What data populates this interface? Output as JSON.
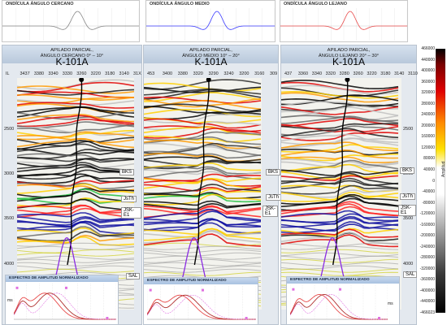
{
  "wavelets": [
    {
      "title": "ONDÍCULA ÁNGULO CERCANO",
      "color": "#888888"
    },
    {
      "title": "ONDÍCULA ÁNGULO MEDIO",
      "color": "#3a3aff"
    },
    {
      "title": "ONDÍCULA ÁNGULO LEJANO",
      "color": "#e84a4a"
    }
  ],
  "panels": [
    {
      "title_line1": "APILADO PARCIAL,",
      "title_line2": "ÁNGULO CERCANO 0° – 10°",
      "well": "K-101A",
      "trace_axis": [
        "IL",
        "3437",
        "3380",
        "3340",
        "3330",
        "3260",
        "3220",
        "3180",
        "3140",
        "31X"
      ],
      "horizons": [
        "BKS",
        "JsTh",
        "JSK-E1",
        "SAL"
      ],
      "spectrum_title": "ESPECTRO DE AMPLITUD NORMALIZADO",
      "spectrum_unit": "ms"
    },
    {
      "title_line1": "APILADO PARCIAL,",
      "title_line2": "ÁNGULO MEDIO 10° – 20°",
      "well": "K-101A",
      "trace_axis": [
        "453",
        "3400",
        "3380",
        "3320",
        "3290",
        "3240",
        "3200",
        "3160",
        "309"
      ],
      "horizons": [
        "BKS",
        "JsTh",
        "JSK-E1"
      ],
      "spectrum_title": "ESPECTRO DE AMPLITUD NORMALIZADO",
      "spectrum_unit": ""
    },
    {
      "title_line1": "APILADO PARCIAL,",
      "title_line2": "ÁNGULO LEJANO 20° – 30°",
      "well": "K-101A",
      "trace_axis": [
        "437",
        "3360",
        "3340",
        "3320",
        "3280",
        "3260",
        "3220",
        "3180",
        "3140",
        "3110"
      ],
      "horizons": [
        "BKS",
        "JsTh",
        "JSK-E1",
        "SAL"
      ],
      "spectrum_title": "ESPECTRO DE AMPLITUD NORMALIZADO",
      "spectrum_unit": "ms"
    }
  ],
  "depth_ticks": [
    "2500",
    "3000",
    "3500",
    "4000"
  ],
  "colorbar": {
    "title": "Amplitud",
    "labels": [
      "466000",
      "440000",
      "400000",
      "360000",
      "320000",
      "280000",
      "240000",
      "200000",
      "160000",
      "120000",
      "80000",
      "40000",
      "0",
      "-40000",
      "-80000",
      "-120000",
      "-160000",
      "-200000",
      "-240000",
      "-280000",
      "-320000",
      "-360000",
      "-400000",
      "-440000",
      "-466023"
    ]
  }
}
